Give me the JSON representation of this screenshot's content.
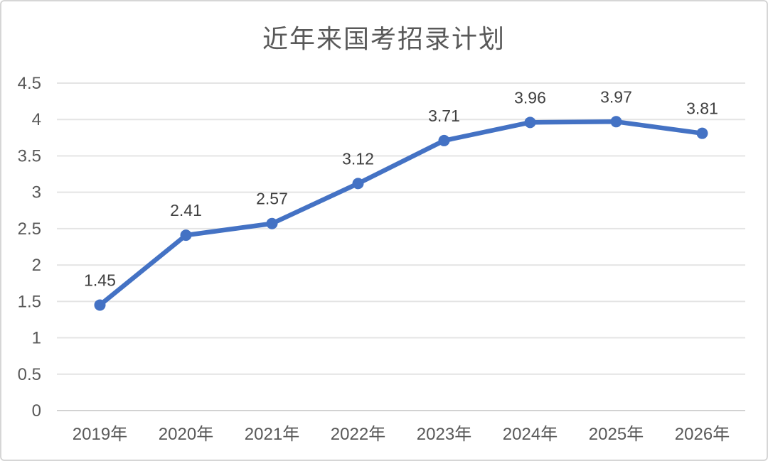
{
  "title": "近年来国考招录计划",
  "colors": {
    "line": "#4472C4",
    "marker": "#4472C4",
    "gridline": "#E4E4E4",
    "axis_line": "#D2D2D2",
    "title_text": "#595959",
    "axis_text": "#595959",
    "data_label_text": "#404040",
    "border": "#D6D6D6",
    "background": "#FFFFFF"
  },
  "chart_data": {
    "type": "line",
    "title": "近年来国考招录计划",
    "categories": [
      "2019年",
      "2020年",
      "2021年",
      "2022年",
      "2023年",
      "2024年",
      "2025年",
      "2026年"
    ],
    "values": [
      1.45,
      2.41,
      2.57,
      3.12,
      3.71,
      3.96,
      3.97,
      3.81
    ],
    "data_labels": [
      "1.45",
      "2.41",
      "2.57",
      "3.12",
      "3.71",
      "3.96",
      "3.97",
      "3.81"
    ],
    "xlabel": "",
    "ylabel": "",
    "ylim": [
      0,
      4.5
    ],
    "ytick_step": 0.5,
    "yticks": [
      "0",
      "0.5",
      "1",
      "1.5",
      "2",
      "2.5",
      "3",
      "3.5",
      "4",
      "4.5"
    ],
    "grid": true,
    "legend_position": "none",
    "marker_style": "circle"
  }
}
